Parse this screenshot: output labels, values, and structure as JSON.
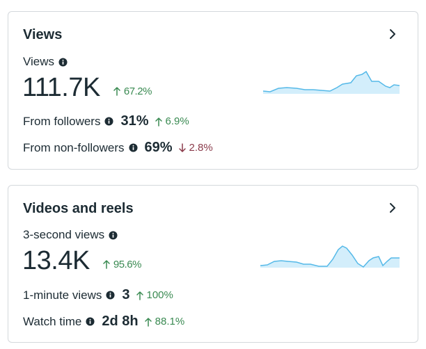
{
  "views": {
    "title": "Views",
    "metric_label": "Views",
    "metric_value": "111.7K",
    "metric_delta": "67.2%",
    "rows": [
      {
        "label": "From followers",
        "value": "31%",
        "delta": "6.9%",
        "direction": "up"
      },
      {
        "label": "From non-followers",
        "value": "69%",
        "delta": "2.8%",
        "direction": "down"
      }
    ]
  },
  "videos": {
    "title": "Videos and reels",
    "metric_label": "3-second views",
    "metric_value": "13.4K",
    "metric_delta": "95.6%",
    "rows": [
      {
        "label": "1-minute views",
        "value": "3",
        "delta": "100%",
        "direction": "up"
      },
      {
        "label": "Watch time",
        "value": "2d 8h",
        "delta": "88.1%",
        "direction": "up"
      }
    ]
  },
  "colors": {
    "up": "#3a8a52",
    "down": "#8a3a4a",
    "spark_fill": "#d3eefb",
    "spark_line": "#55b9e8"
  },
  "icons": {
    "info": "info-circle-icon",
    "chevron": "chevron-right-icon",
    "up": "arrow-up-icon",
    "down": "arrow-down-icon"
  }
}
